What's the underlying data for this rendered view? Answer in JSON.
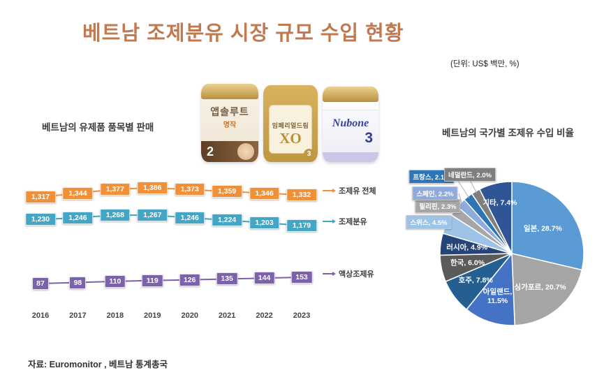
{
  "title": "베트남 조제분유 시장 규모  수입 현황",
  "unit": "(단위: US$ 백만, %)",
  "source": "자료: Euromonitor , 베트남 통계총국",
  "products": [
    {
      "name": "앱솔루트",
      "sub": "명작",
      "stage": "2"
    },
    {
      "name": "임페리얼드림",
      "sub": "XO",
      "stage": "3"
    },
    {
      "name": "Nubone",
      "sub": "",
      "stage": "3"
    }
  ],
  "chart_data": [
    {
      "type": "line",
      "title": "베트남의 유제품 품목별 판매",
      "x": [
        "2016",
        "2017",
        "2018",
        "2019",
        "2020",
        "2021",
        "2022",
        "2023"
      ],
      "series": [
        {
          "name": "조제유 전체",
          "color": "#F0913A",
          "values": [
            1317,
            1344,
            1377,
            1386,
            1373,
            1359,
            1346,
            1332
          ]
        },
        {
          "name": "조제분유",
          "color": "#45A5C4",
          "values": [
            1230,
            1246,
            1268,
            1267,
            1246,
            1224,
            1203,
            1179
          ]
        },
        {
          "name": "액상조제유",
          "color": "#7C62AA",
          "values": [
            87,
            98,
            110,
            119,
            126,
            135,
            144,
            153
          ]
        }
      ],
      "legend_position": "right",
      "grid": false
    },
    {
      "type": "pie",
      "title": "베트남의 국가별 조제유 수입 비율",
      "slices": [
        {
          "label": "일본",
          "value": 28.7,
          "color": "#5B9BD5"
        },
        {
          "label": "싱가포르",
          "value": 20.7,
          "color": "#A5A5A5"
        },
        {
          "label": "아일랜드",
          "value": 11.5,
          "color": "#4472C4"
        },
        {
          "label": "호주",
          "value": 7.8,
          "color": "#255E91"
        },
        {
          "label": "한국",
          "value": 6.0,
          "color": "#5B5B5B"
        },
        {
          "label": "러시아",
          "value": 4.9,
          "color": "#264478"
        },
        {
          "label": "스위스",
          "value": 4.5,
          "color": "#9DC3E6"
        },
        {
          "label": "필리핀",
          "value": 2.3,
          "color": "#A6A6A6"
        },
        {
          "label": "스페인",
          "value": 2.2,
          "color": "#8FAADC"
        },
        {
          "label": "프랑스",
          "value": 2.1,
          "color": "#2E75B6"
        },
        {
          "label": "네덜란드",
          "value": 2.0,
          "color": "#7F7F7F"
        },
        {
          "label": "기타",
          "value": 7.4,
          "color": "#2F5597"
        }
      ]
    }
  ]
}
